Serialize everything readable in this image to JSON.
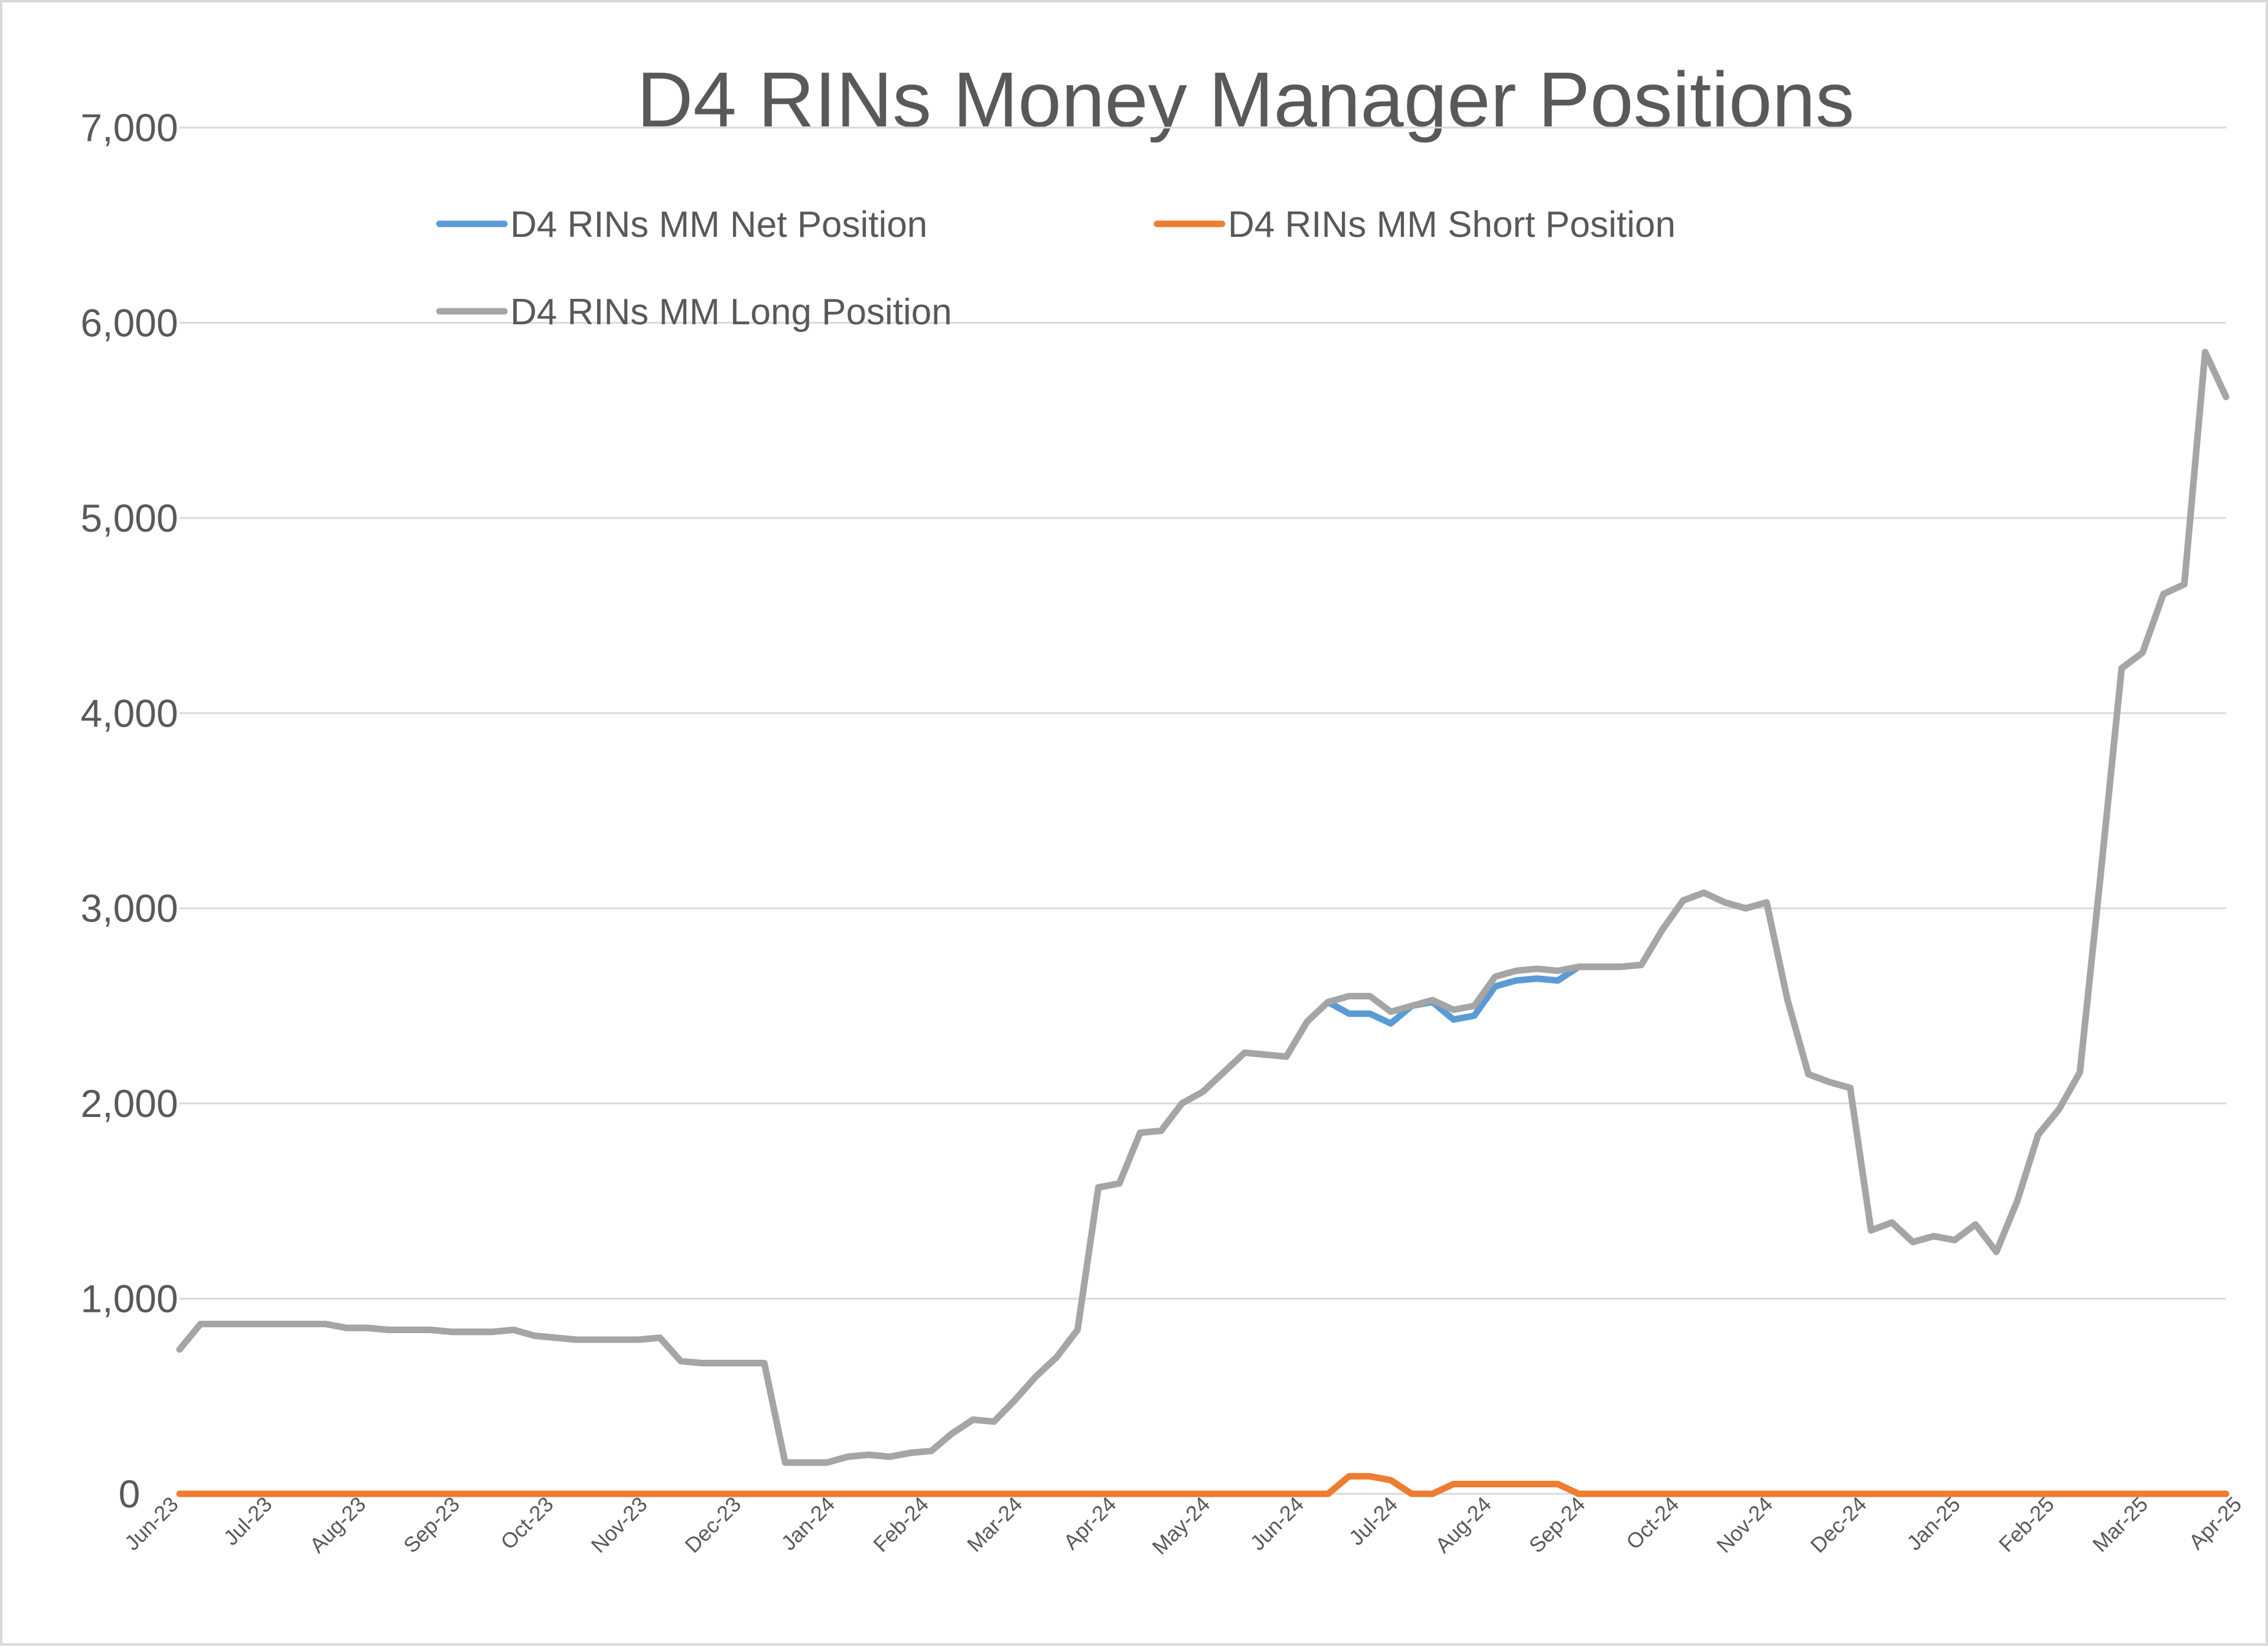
{
  "chart_data": {
    "type": "line",
    "title": "D4 RINs Money Manager Positions",
    "xlabel": "",
    "ylabel": "",
    "ylim": [
      0,
      7000
    ],
    "yticks": [
      "0",
      "1,000",
      "2,000",
      "3,000",
      "4,000",
      "5,000",
      "6,000",
      "7,000"
    ],
    "x_tick_labels": [
      "Jun-23",
      "Jul-23",
      "Aug-23",
      "Sep-23",
      "Oct-23",
      "Nov-23",
      "Dec-23",
      "Jan-24",
      "Feb-24",
      "Mar-24",
      "Apr-24",
      "May-24",
      "Jun-24",
      "Jul-24",
      "Aug-24",
      "Sep-24",
      "Oct-24",
      "Nov-24",
      "Dec-24",
      "Jan-25",
      "Feb-25",
      "Mar-25",
      "Apr-25"
    ],
    "grid": true,
    "legend_position": "top",
    "series": [
      {
        "name": "D4 RINs MM Net Position",
        "color": "#5b9bd5",
        "values": [
          740,
          870,
          870,
          870,
          870,
          870,
          870,
          870,
          850,
          850,
          840,
          840,
          840,
          830,
          830,
          830,
          840,
          810,
          800,
          790,
          790,
          790,
          790,
          800,
          680,
          670,
          670,
          670,
          670,
          160,
          160,
          160,
          190,
          200,
          190,
          210,
          220,
          310,
          380,
          370,
          480,
          600,
          700,
          840,
          1570,
          1590,
          1850,
          1860,
          2000,
          2060,
          2160,
          2260,
          2250,
          2240,
          2420,
          2520,
          2460,
          2460,
          2410,
          2500,
          2520,
          2430,
          2450,
          2600,
          2630,
          2640,
          2630,
          2700,
          2700,
          2700,
          2710,
          2890,
          3040,
          3080,
          3030,
          3000,
          3030,
          2530,
          2150,
          2110,
          2080,
          1350,
          1390,
          1290,
          1320,
          1300,
          1380,
          1240,
          1500,
          1840,
          1970,
          2160,
          3180,
          4230,
          4310,
          4610,
          4660,
          5850,
          5620
        ]
      },
      {
        "name": "D4 RINs MM Short Position",
        "color": "#ed7d31",
        "values": [
          0,
          0,
          0,
          0,
          0,
          0,
          0,
          0,
          0,
          0,
          0,
          0,
          0,
          0,
          0,
          0,
          0,
          0,
          0,
          0,
          0,
          0,
          0,
          0,
          0,
          0,
          0,
          0,
          0,
          0,
          0,
          0,
          0,
          0,
          0,
          0,
          0,
          0,
          0,
          0,
          0,
          0,
          0,
          0,
          0,
          0,
          0,
          0,
          0,
          0,
          0,
          0,
          0,
          0,
          0,
          0,
          90,
          90,
          70,
          0,
          0,
          50,
          50,
          50,
          50,
          50,
          50,
          0,
          0,
          0,
          0,
          0,
          0,
          0,
          0,
          0,
          0,
          0,
          0,
          0,
          0,
          0,
          0,
          0,
          0,
          0,
          0,
          0,
          0,
          0,
          0,
          0,
          0,
          0,
          0,
          0,
          0,
          0,
          0
        ]
      },
      {
        "name": "D4 RINs MM Long Position",
        "color": "#a5a5a5",
        "values": [
          740,
          870,
          870,
          870,
          870,
          870,
          870,
          870,
          850,
          850,
          840,
          840,
          840,
          830,
          830,
          830,
          840,
          810,
          800,
          790,
          790,
          790,
          790,
          800,
          680,
          670,
          670,
          670,
          670,
          160,
          160,
          160,
          190,
          200,
          190,
          210,
          220,
          310,
          380,
          370,
          480,
          600,
          700,
          840,
          1570,
          1590,
          1850,
          1860,
          2000,
          2060,
          2160,
          2260,
          2250,
          2240,
          2420,
          2520,
          2550,
          2550,
          2470,
          2500,
          2530,
          2480,
          2500,
          2650,
          2680,
          2690,
          2680,
          2700,
          2700,
          2700,
          2710,
          2890,
          3040,
          3080,
          3030,
          3000,
          3030,
          2530,
          2150,
          2110,
          2080,
          1350,
          1390,
          1290,
          1320,
          1300,
          1380,
          1240,
          1500,
          1840,
          1970,
          2160,
          3180,
          4230,
          4310,
          4610,
          4660,
          5850,
          5620
        ]
      }
    ]
  }
}
